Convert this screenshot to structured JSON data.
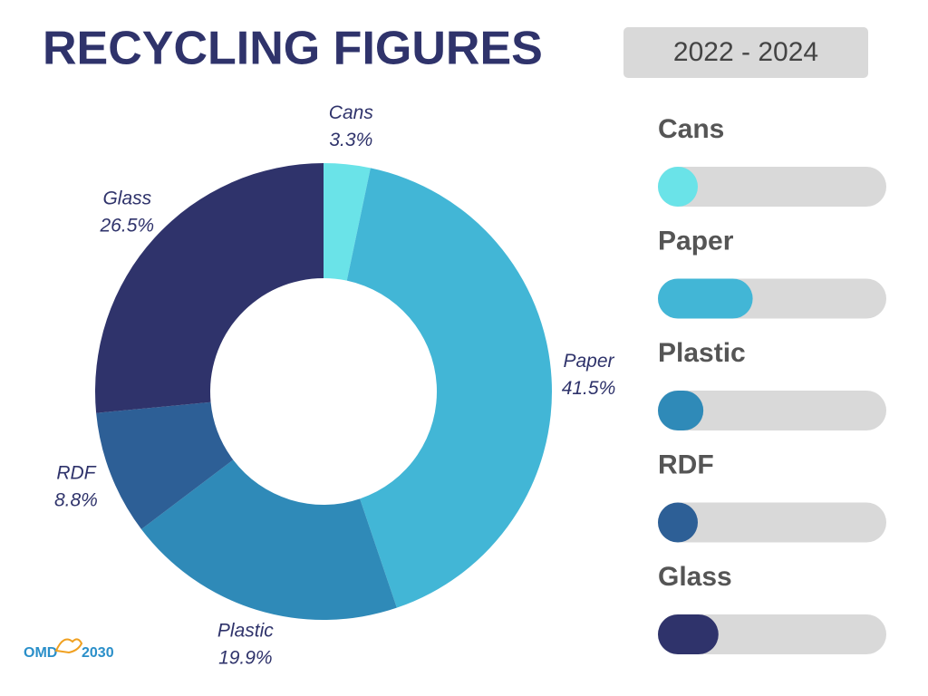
{
  "chart_data": {
    "type": "pie",
    "donut": true,
    "title": "RECYCLING FIGURES",
    "subtitle": "2022 - 2024",
    "categories": [
      "Cans",
      "Paper",
      "Plastic",
      "RDF",
      "Glass"
    ],
    "values": [
      3.3,
      41.5,
      19.9,
      8.8,
      26.5
    ],
    "value_labels": [
      "3.3%",
      "41.5%",
      "19.9%",
      "8.8%",
      "26.5%"
    ],
    "colors": [
      "#6ae3e8",
      "#42b6d6",
      "#2f8ab8",
      "#2d5f96",
      "#2f336b"
    ]
  },
  "logo": {
    "left": "OMD",
    "right": "2030"
  }
}
